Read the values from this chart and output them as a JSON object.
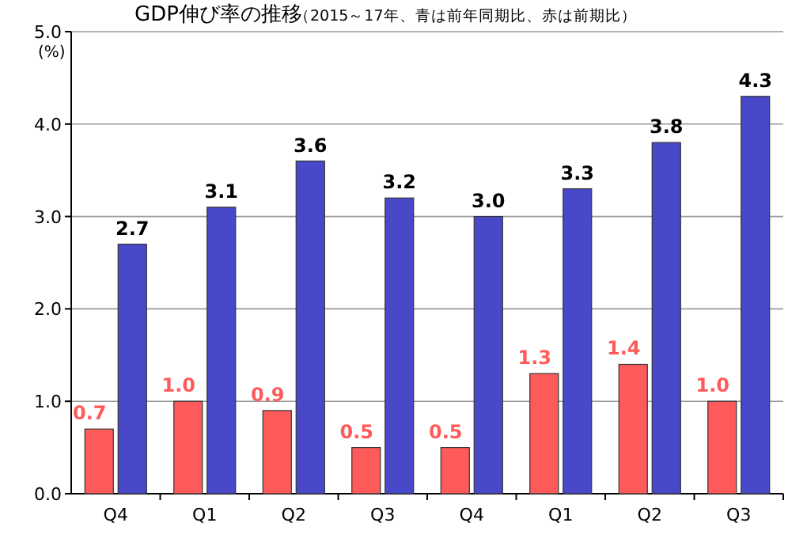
{
  "chart_data": {
    "type": "bar",
    "title": "GDP伸び率の推移",
    "subtitle": "（2015～17年、青は前年同期比、赤は前期比）",
    "ylabel": "(%)",
    "categories": [
      "Q4",
      "Q1",
      "Q2",
      "Q3",
      "Q4",
      "Q1",
      "Q2",
      "Q3"
    ],
    "series": [
      {
        "color": "#ff5a5a",
        "values": [
          0.7,
          1.0,
          0.9,
          0.5,
          0.5,
          1.3,
          1.4,
          1.0
        ],
        "value_labels": [
          "0.7",
          "1.0",
          "0.9",
          "0.5",
          "0.5",
          "1.3",
          "1.4",
          "1.0"
        ]
      },
      {
        "color": "#4848c8",
        "values": [
          2.7,
          3.1,
          3.6,
          3.2,
          3.0,
          3.3,
          3.8,
          4.3
        ],
        "value_labels": [
          "2.7",
          "3.1",
          "3.6",
          "3.2",
          "3.0",
          "3.3",
          "3.8",
          "4.3"
        ]
      }
    ],
    "ylim": [
      0,
      5
    ],
    "yticks": [
      {
        "value": 0,
        "label": "0.0"
      },
      {
        "value": 1,
        "label": "1.0"
      },
      {
        "value": 2,
        "label": "2.0"
      },
      {
        "value": 3,
        "label": "3.0"
      },
      {
        "value": 4,
        "label": "4.0"
      },
      {
        "value": 5,
        "label": "5.0"
      }
    ],
    "grid": "y"
  }
}
